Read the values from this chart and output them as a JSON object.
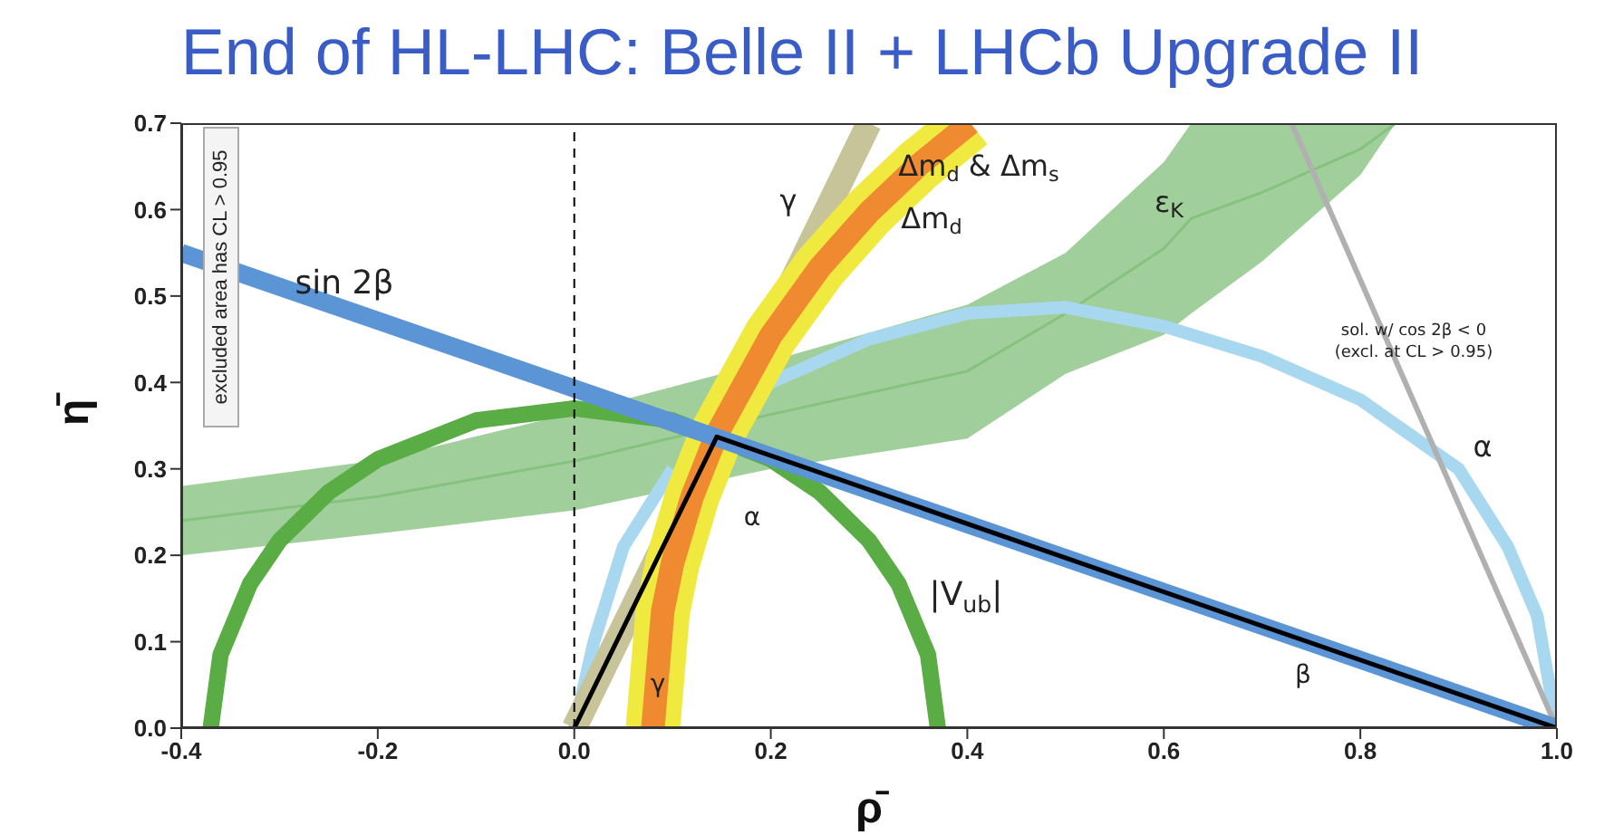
{
  "chart_data": {
    "type": "line",
    "title": "End of HL-LHC: Belle II + LHCb Upgrade II",
    "xlabel": "ρ̄",
    "ylabel": "η̄",
    "xlim": [
      -0.4,
      1.0
    ],
    "ylim": [
      0,
      0.7
    ],
    "xticks": [
      -0.4,
      -0.2,
      {
        "value": 0,
        "label": "0.0"
      },
      0.2,
      0.4,
      0.6,
      0.8,
      {
        "value": 1,
        "label": "1.0"
      }
    ],
    "yticks": [
      {
        "value": 0,
        "label": "0.0"
      },
      0.1,
      0.2,
      0.3,
      0.4,
      0.5,
      0.6,
      {
        "value": 0.7,
        "label": "0.7"
      }
    ],
    "marker": "none",
    "series": [
      {
        "color": "#86c27f",
        "x": [
          -0.4,
          -0.2,
          0,
          0.2,
          0.4,
          0.5,
          0.6,
          0.628,
          0.7,
          0.8,
          0.836
        ],
        "lower": [
          0.2,
          0.225,
          0.252,
          0.3,
          0.335,
          0.41,
          0.455,
          0.48,
          0.54,
          0.64,
          0.7
        ],
        "upper": [
          0.28,
          0.31,
          0.365,
          0.425,
          0.49,
          0.55,
          0.655,
          0.7,
          0.7,
          0.7,
          0.7
        ],
        "values": [
          0.24,
          0.268,
          0.309,
          0.363,
          0.413,
          0.48,
          0.555,
          0.59,
          0.62,
          0.67,
          0.7
        ]
      },
      {
        "color": "#5aac45",
        "x": [
          -0.37,
          -0.36,
          -0.33,
          -0.3,
          -0.25,
          -0.2,
          -0.1,
          0,
          0.1,
          0.2,
          0.25,
          0.3,
          0.33,
          0.36,
          0.37
        ],
        "values": [
          0,
          0.085,
          0.167,
          0.217,
          0.273,
          0.311,
          0.356,
          0.37,
          0.356,
          0.311,
          0.273,
          0.217,
          0.167,
          0.085,
          0
        ]
      },
      {
        "color": "#a8d8f0",
        "x": [
          0,
          0.02,
          0.05,
          0.1,
          0.145,
          0.2,
          0.3,
          0.4,
          0.5,
          0.6,
          0.7,
          0.8,
          0.9,
          0.95,
          0.98,
          1.0
        ],
        "values": [
          0,
          0.1,
          0.21,
          0.3,
          null,
          0.4,
          0.45,
          0.48,
          0.487,
          0.465,
          0.43,
          0.38,
          0.3,
          0.21,
          0.13,
          0
        ]
      },
      {
        "color": "#b0b0b0",
        "x": [
          0.73,
          1.0
        ],
        "values": [
          0.7,
          0
        ]
      },
      {
        "color": "#c8c49a",
        "x": [
          0,
          0.3
        ],
        "values": [
          0,
          0.7
        ]
      },
      {
        "color": "#f0ea40",
        "x": [
          0.08,
          0.09,
          0.1,
          0.12,
          0.145,
          0.2,
          0.25,
          0.3,
          0.35,
          0.403
        ],
        "values": [
          0,
          0.135,
          0.191,
          0.268,
          0.34,
          0.454,
          0.533,
          0.597,
          0.651,
          0.7
        ]
      },
      {
        "color": "#f08a30",
        "x": [
          0.08,
          0.09,
          0.1,
          0.12,
          0.145,
          0.2,
          0.25,
          0.3,
          0.35,
          0.403
        ],
        "values": [
          0,
          0.135,
          0.191,
          0.268,
          0.34,
          0.454,
          0.533,
          0.597,
          0.651,
          0.7
        ]
      },
      {
        "color": "#5b95d6",
        "x": [
          -0.4,
          0,
          0.4,
          0.8,
          1.0
        ],
        "values": [
          0.55,
          0.393,
          0.236,
          0.079,
          0
        ]
      },
      {
        "color": "#000000",
        "x": [
          0,
          0.145,
          1.0
        ],
        "values": [
          0,
          0.337,
          0
        ]
      }
    ],
    "ref_lines": [
      {
        "axis": "x",
        "value": 0,
        "color": "#000000",
        "line_style": "dashed"
      }
    ],
    "annotations": [
      "sin 2β",
      "γ",
      "Δm$_{d}$ & Δm$_{s}$",
      "Δm$_{d}$",
      "ε$_{K}$",
      "|V$_{ub}$|",
      "α",
      "α",
      "γ",
      "β",
      "sol. w/ cos 2β < 0",
      "(excl. at CL > 0.95)",
      "excluded area has CL > 0.95"
    ]
  }
}
